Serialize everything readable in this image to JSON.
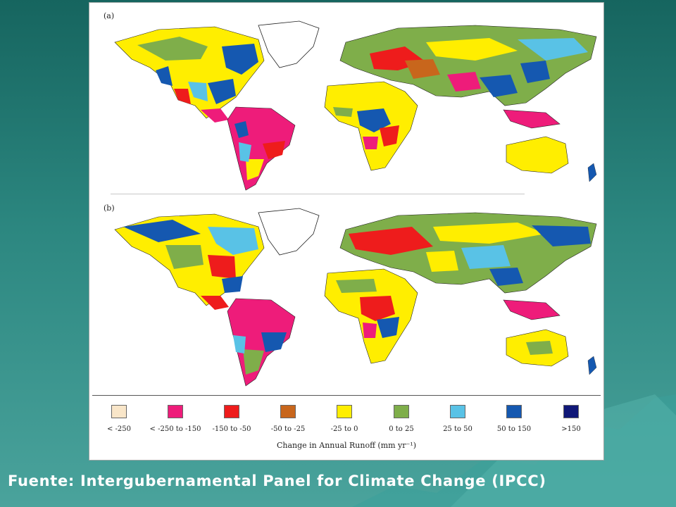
{
  "figure": {
    "panels": [
      {
        "label": "(a)"
      },
      {
        "label": "(b)"
      }
    ],
    "legend": {
      "title": "Change in Annual Runoff (mm yr⁻¹)",
      "items": [
        {
          "label": "< -250",
          "color": "#f9e6c9"
        },
        {
          "label": "< -250 to -150",
          "color": "#ee1c7a"
        },
        {
          "label": "-150 to -50",
          "color": "#ee1c1c"
        },
        {
          "label": "-50 to -25",
          "color": "#c8661c"
        },
        {
          "label": "-25 to 0",
          "color": "#ffee00"
        },
        {
          "label": "0 to 25",
          "color": "#7fae4a"
        },
        {
          "label": "25 to 50",
          "color": "#59c2e6"
        },
        {
          "label": "50 to 150",
          "color": "#1558b0"
        },
        {
          "label": ">150",
          "color": "#101878"
        }
      ]
    }
  },
  "caption": "Fuente: Intergubernamental Panel for Climate Change (IPCC)"
}
